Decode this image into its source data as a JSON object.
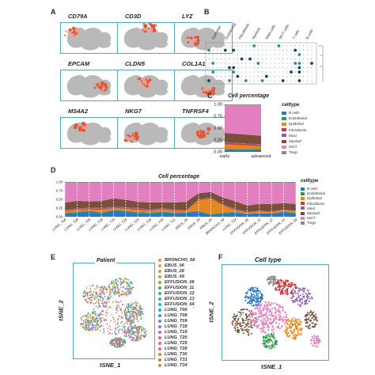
{
  "panels": {
    "a": {
      "letter": "A"
    },
    "b": {
      "letter": "B"
    },
    "c": {
      "letter": "C"
    },
    "d": {
      "letter": "D"
    },
    "e": {
      "letter": "E"
    },
    "f": {
      "letter": "F"
    }
  },
  "genes": [
    "CD79A",
    "CD3D",
    "LYZ",
    "EPCAM",
    "CLDN5",
    "COL1A1",
    "MS4A2",
    "NKG7",
    "TNFRSF4"
  ],
  "dotplot": {
    "celltypes": [
      "Epithelial",
      "Endothelial",
      "Fibroblasts",
      "Myeloid",
      "Mast cells",
      "NK/T cells",
      "T cells",
      "B cells"
    ]
  },
  "cell_percentage": {
    "title": "Cell percentage",
    "legend_title": "celltype",
    "celltypes": [
      "B cells",
      "Endothelial",
      "Epithelial",
      "Fibroblasts",
      "Mast",
      "Myeloid",
      "NK/T",
      "Tregs"
    ],
    "colors": [
      "#2a78c4",
      "#2f9a4a",
      "#e8861e",
      "#c8383b",
      "#8e5fb0",
      "#7a4f3a",
      "#e27fbf",
      "#8a8a8a"
    ]
  },
  "chart_data": [
    {
      "type": "area",
      "title": "Cell percentage",
      "categories": [
        "early",
        "advanced"
      ],
      "y_ticks": [
        "0.00",
        "0.25",
        "0.50",
        "0.75",
        "1.00"
      ],
      "ylim": [
        0,
        1
      ],
      "series": [
        {
          "name": "B cells",
          "values": [
            0.04,
            0.05
          ]
        },
        {
          "name": "Endothelial",
          "values": [
            0.02,
            0.01
          ]
        },
        {
          "name": "Epithelial",
          "values": [
            0.1,
            0.06
          ]
        },
        {
          "name": "Fibroblasts",
          "values": [
            0.03,
            0.03
          ]
        },
        {
          "name": "Mast",
          "values": [
            0.01,
            0.01
          ]
        },
        {
          "name": "Myeloid",
          "values": [
            0.2,
            0.18
          ]
        },
        {
          "name": "NK/T",
          "values": [
            0.58,
            0.64
          ]
        },
        {
          "name": "Tregs",
          "values": [
            0.02,
            0.02
          ]
        }
      ],
      "legend_position": "right"
    },
    {
      "type": "area",
      "title": "Cell percentage",
      "categories": [
        "LUNG_T06",
        "LUNG_T08",
        "LUNG_T09",
        "LUNG_T18",
        "LUNG_T19",
        "LUNG_T20",
        "LUNG_T25",
        "LUNG_T28",
        "LUNG_T30",
        "LUNG_T31",
        "EBUS_06",
        "EBUS_28",
        "EBUS_49",
        "BRONCHO_58",
        "LUNG_T34",
        "EFFUSION_06",
        "EFFUSION_11",
        "EFFUSION_12",
        "EFFUSION_13",
        "EFFUSION_64"
      ],
      "y_ticks": [
        "0.00",
        "0.25",
        "0.50",
        "0.75",
        "1.00"
      ],
      "ylim": [
        0,
        1
      ],
      "series": [
        {
          "name": "B cells",
          "values": [
            0.08,
            0.12,
            0.15,
            0.1,
            0.18,
            0.14,
            0.11,
            0.09,
            0.13,
            0.1,
            0.12,
            0.15,
            0.06,
            0.1,
            0.12,
            0.08,
            0.1,
            0.09,
            0.14,
            0.1
          ]
        },
        {
          "name": "Endothelial",
          "values": [
            0.03,
            0.02,
            0.03,
            0.02,
            0.02,
            0.03,
            0.02,
            0.03,
            0.02,
            0.02,
            0.01,
            0.02,
            0.01,
            0.02,
            0.02,
            0.01,
            0.01,
            0.01,
            0.01,
            0.01
          ]
        },
        {
          "name": "Epithelial",
          "values": [
            0.05,
            0.06,
            0.04,
            0.08,
            0.05,
            0.06,
            0.07,
            0.05,
            0.06,
            0.05,
            0.04,
            0.3,
            0.45,
            0.2,
            0.05,
            0.03,
            0.04,
            0.03,
            0.04,
            0.04
          ]
        },
        {
          "name": "Fibroblasts",
          "values": [
            0.02,
            0.02,
            0.02,
            0.03,
            0.02,
            0.02,
            0.03,
            0.02,
            0.02,
            0.02,
            0.01,
            0.02,
            0.02,
            0.02,
            0.02,
            0.01,
            0.01,
            0.01,
            0.01,
            0.01
          ]
        },
        {
          "name": "Mast",
          "values": [
            0.02,
            0.02,
            0.02,
            0.02,
            0.02,
            0.02,
            0.02,
            0.02,
            0.02,
            0.02,
            0.01,
            0.01,
            0.01,
            0.01,
            0.02,
            0.01,
            0.01,
            0.01,
            0.01,
            0.01
          ]
        },
        {
          "name": "Myeloid",
          "values": [
            0.2,
            0.22,
            0.18,
            0.2,
            0.24,
            0.22,
            0.18,
            0.2,
            0.16,
            0.2,
            0.24,
            0.18,
            0.16,
            0.2,
            0.22,
            0.18,
            0.2,
            0.22,
            0.18,
            0.2
          ]
        },
        {
          "name": "NK/T",
          "values": [
            0.57,
            0.51,
            0.53,
            0.52,
            0.44,
            0.48,
            0.54,
            0.56,
            0.56,
            0.56,
            0.54,
            0.29,
            0.26,
            0.42,
            0.52,
            0.65,
            0.6,
            0.6,
            0.58,
            0.6
          ]
        },
        {
          "name": "Tregs",
          "values": [
            0.03,
            0.03,
            0.03,
            0.03,
            0.03,
            0.03,
            0.03,
            0.03,
            0.03,
            0.03,
            0.03,
            0.03,
            0.03,
            0.03,
            0.03,
            0.03,
            0.03,
            0.03,
            0.03,
            0.03
          ]
        }
      ],
      "legend_position": "right"
    }
  ],
  "tsne_e": {
    "title": "Patient",
    "xlabel": "tSNE_1",
    "ylabel": "tSNE_2",
    "patients": [
      "BRONCHO_58",
      "EBUS_06",
      "EBUS_28",
      "EBUS_49",
      "EFFUSION_06",
      "EFFUSION_11",
      "EFFUSION_12",
      "EFFUSION_13",
      "EFFUSION_64",
      "LUNG_T06",
      "LUNG_T08",
      "LUNG_T09",
      "LUNG_T18",
      "LUNG_T19",
      "LUNG_T20",
      "LUNG_T25",
      "LUNG_T28",
      "LUNG_T30",
      "LUNG_T31",
      "LUNG_T34"
    ],
    "colors": [
      "#f08a6a",
      "#e3a23a",
      "#c9a33b",
      "#a7b23a",
      "#7cb63d",
      "#4fb548",
      "#3cb672",
      "#2fb79a",
      "#2cb5c0",
      "#33a9d9",
      "#3d94e0",
      "#6d7fe0",
      "#9a6fdc",
      "#c163d0",
      "#dd5cba",
      "#e8609a",
      "#ea6b7b",
      "#d9785a",
      "#b98a45",
      "#9c9c3a"
    ]
  },
  "tsne_f": {
    "title": "Cell type",
    "xlabel": "tSNE_1",
    "ylabel": "tSNE_2"
  }
}
